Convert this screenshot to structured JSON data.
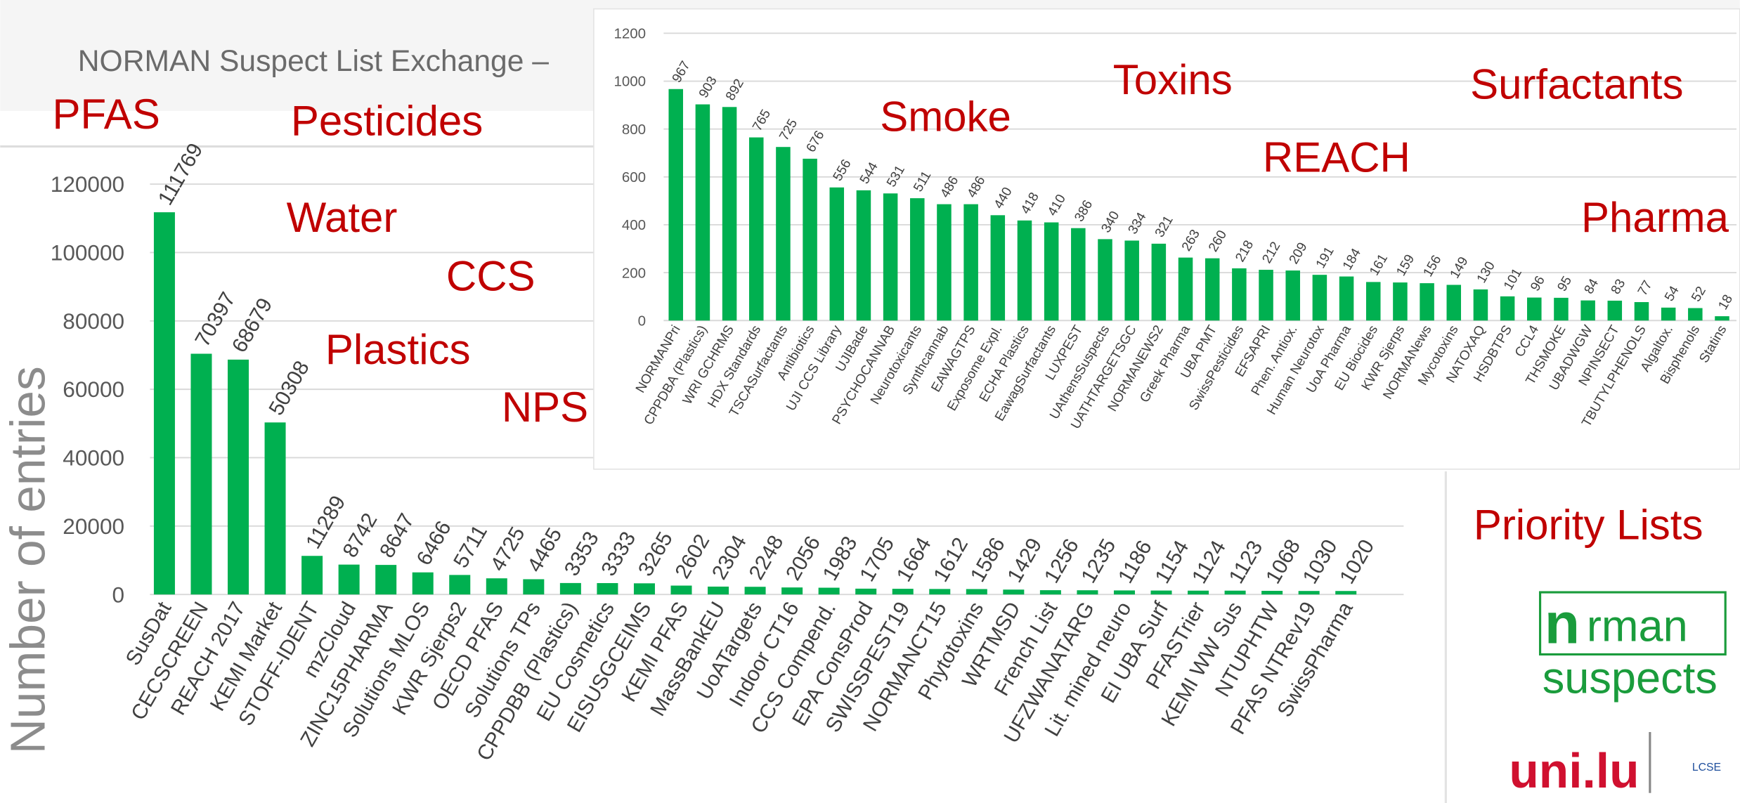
{
  "header": {
    "title": "NORMAN Suspect List Exchange –"
  },
  "topic_labels": [
    "PFAS",
    "Pesticides",
    "Water",
    "CCS",
    "Plastics",
    "NPS",
    "Smoke",
    "Toxins",
    "REACH",
    "Surfactants",
    "Pharma"
  ],
  "priority_lists": "Priority Lists",
  "logo": {
    "norman": "rman",
    "suspects": "suspects",
    "university": "uni.lu",
    "lcsb": "LCSE"
  },
  "chart_data": [
    {
      "type": "bar",
      "y_label": "Number of entries",
      "color": "#00b050",
      "grid": true,
      "categories": [
        "SusDat",
        "CECSCREEN",
        "REACH 2017",
        "KEMI Market",
        "STOFF-IDENT",
        "mzCloud",
        "ZINC15PHARMA",
        "Solutions MLOS",
        "KWR Sjerps2",
        "OECD PFAS",
        "Solutions TPs",
        "CPPDBB (Plastics)",
        "EU Cosmetics",
        "EISUSGCEIMS",
        "KEMI PFAS",
        "MassBankEU",
        "UoATargets",
        "Indoor CT16",
        "CCS Compend.",
        "EPA ConsProd",
        "SWISSPEST19",
        "NORMANCT15",
        "Phytotoxins",
        "WRTMSD",
        "French List",
        "UFZWANATARG",
        "Lit. mined neuro",
        "EI UBA Surf",
        "PFASTrier",
        "KEMI WW Sus",
        "NTUPHTW",
        "PFAS NTRev19",
        "SwissPharma"
      ],
      "values": [
        111769,
        70397,
        68679,
        50308,
        11289,
        8742,
        8647,
        6466,
        5711,
        4725,
        4465,
        3353,
        3333,
        3265,
        2602,
        2304,
        2248,
        2056,
        1983,
        1705,
        1664,
        1612,
        1586,
        1429,
        1256,
        1235,
        1186,
        1154,
        1124,
        1123,
        1068,
        1030,
        1020
      ],
      "ylim": [
        0,
        120000
      ],
      "yticks": [
        0,
        20000,
        40000,
        60000,
        80000,
        100000,
        120000
      ]
    },
    {
      "type": "bar",
      "color": "#00b050",
      "grid": true,
      "categories": [
        "NORMANPri",
        "CPPDBA (Plastics)",
        "WRI GCHRMS",
        "HDX Standards",
        "TSCASurfactants",
        "Antibiotics",
        "UJI CCS Library",
        "UJIBade",
        "PSYCHOCANNAB",
        "Neurotoxicants",
        "Synthcannab",
        "EAWAGTPS",
        "Exposome Expl.",
        "ECHA Plastics",
        "EawagSurfactants",
        "LUXPEST",
        "UAthensSuspects",
        "UATHTARGETSGC",
        "NORMANEWS2",
        "Greek Pharma",
        "UBA PMT",
        "SwissPesticides",
        "EFSAPRI",
        "Phen. Antiox.",
        "Human Neurotox",
        "UoA Pharma",
        "EU Biocides",
        "KWR Sjerps",
        "NORMANews",
        "Mycotoxins",
        "NATOXAQ",
        "HSDBTPS",
        "CCL4",
        "THSMOKE",
        "UBADWGW",
        "NPINSECT",
        "TBUTYLPHENOLS",
        "Algaltox.",
        "Bisphenols",
        "Statins"
      ],
      "values": [
        967,
        903,
        892,
        765,
        725,
        676,
        556,
        544,
        531,
        511,
        486,
        486,
        440,
        418,
        410,
        386,
        340,
        334,
        321,
        263,
        260,
        218,
        212,
        209,
        191,
        184,
        161,
        159,
        156,
        149,
        130,
        101,
        96,
        95,
        84,
        83,
        77,
        54,
        52,
        18
      ],
      "ylim": [
        0,
        1200
      ],
      "yticks": [
        0,
        200,
        400,
        600,
        800,
        1000,
        1200
      ]
    }
  ]
}
